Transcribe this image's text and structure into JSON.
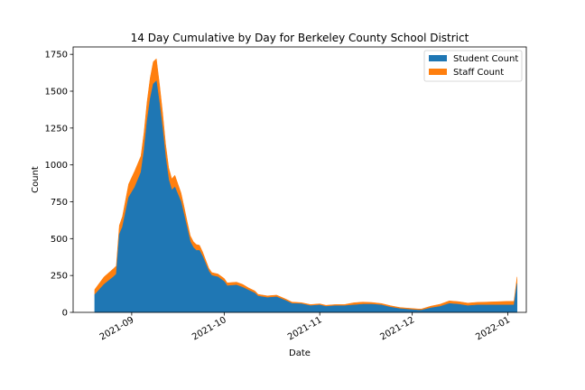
{
  "chart_data": {
    "type": "area",
    "stacked": true,
    "title": "14 Day Cumulative by Day for Berkeley County School District",
    "xlabel": "Date",
    "ylabel": "Count",
    "ylim": [
      0,
      1800
    ],
    "xlim": [
      "2021-08-13",
      "2022-01-07"
    ],
    "yticks": [
      0,
      250,
      500,
      750,
      1000,
      1250,
      1500,
      1750
    ],
    "ytick_labels": [
      "0",
      "250",
      "500",
      "750",
      "1000",
      "1250",
      "1500",
      "1750"
    ],
    "xticks": [
      "2021-09-01",
      "2021-10-01",
      "2021-11-01",
      "2021-12-01",
      "2022-01-01"
    ],
    "xtick_labels": [
      "2021-09",
      "2021-10",
      "2021-11",
      "2021-12",
      "2022-01"
    ],
    "legend_position": "top-right",
    "grid": false,
    "series": [
      {
        "name": "Student Count",
        "color": "#1f77b4",
        "points": [
          [
            "2021-08-20",
            120
          ],
          [
            "2021-08-23",
            190
          ],
          [
            "2021-08-26",
            240
          ],
          [
            "2021-08-27",
            260
          ],
          [
            "2021-08-28",
            530
          ],
          [
            "2021-08-29",
            580
          ],
          [
            "2021-08-31",
            780
          ],
          [
            "2021-09-02",
            850
          ],
          [
            "2021-09-04",
            950
          ],
          [
            "2021-09-05",
            1100
          ],
          [
            "2021-09-06",
            1300
          ],
          [
            "2021-09-07",
            1450
          ],
          [
            "2021-09-08",
            1550
          ],
          [
            "2021-09-09",
            1570
          ],
          [
            "2021-09-10",
            1420
          ],
          [
            "2021-09-11",
            1250
          ],
          [
            "2021-09-12",
            1050
          ],
          [
            "2021-09-13",
            900
          ],
          [
            "2021-09-14",
            830
          ],
          [
            "2021-09-15",
            850
          ],
          [
            "2021-09-16",
            800
          ],
          [
            "2021-09-17",
            750
          ],
          [
            "2021-09-18",
            660
          ],
          [
            "2021-09-19",
            570
          ],
          [
            "2021-09-20",
            480
          ],
          [
            "2021-09-21",
            440
          ],
          [
            "2021-09-22",
            420
          ],
          [
            "2021-09-23",
            420
          ],
          [
            "2021-09-24",
            380
          ],
          [
            "2021-09-25",
            330
          ],
          [
            "2021-09-26",
            280
          ],
          [
            "2021-09-27",
            250
          ],
          [
            "2021-09-29",
            240
          ],
          [
            "2021-10-01",
            210
          ],
          [
            "2021-10-02",
            180
          ],
          [
            "2021-10-05",
            185
          ],
          [
            "2021-10-07",
            170
          ],
          [
            "2021-10-09",
            150
          ],
          [
            "2021-10-11",
            130
          ],
          [
            "2021-10-12",
            110
          ],
          [
            "2021-10-15",
            100
          ],
          [
            "2021-10-18",
            105
          ],
          [
            "2021-10-21",
            80
          ],
          [
            "2021-10-23",
            60
          ],
          [
            "2021-10-26",
            58
          ],
          [
            "2021-10-29",
            45
          ],
          [
            "2021-11-01",
            50
          ],
          [
            "2021-11-03",
            40
          ],
          [
            "2021-11-06",
            45
          ],
          [
            "2021-11-09",
            45
          ],
          [
            "2021-11-12",
            50
          ],
          [
            "2021-11-15",
            55
          ],
          [
            "2021-11-18",
            55
          ],
          [
            "2021-11-21",
            50
          ],
          [
            "2021-11-24",
            35
          ],
          [
            "2021-11-27",
            25
          ],
          [
            "2021-11-30",
            20
          ],
          [
            "2021-12-03",
            15
          ],
          [
            "2021-12-04",
            15
          ],
          [
            "2021-12-07",
            30
          ],
          [
            "2021-12-10",
            40
          ],
          [
            "2021-12-13",
            60
          ],
          [
            "2021-12-16",
            55
          ],
          [
            "2021-12-19",
            45
          ],
          [
            "2021-12-22",
            50
          ],
          [
            "2021-12-25",
            50
          ],
          [
            "2021-12-28",
            50
          ],
          [
            "2022-01-01",
            50
          ],
          [
            "2022-01-03",
            50
          ],
          [
            "2022-01-04",
            195
          ],
          [
            "2022-01-04",
            40
          ]
        ]
      },
      {
        "name": "Staff Count",
        "color": "#ff7f0e",
        "points": [
          [
            "2021-08-20",
            35
          ],
          [
            "2021-08-23",
            50
          ],
          [
            "2021-08-26",
            55
          ],
          [
            "2021-08-27",
            55
          ],
          [
            "2021-08-28",
            60
          ],
          [
            "2021-08-29",
            70
          ],
          [
            "2021-08-31",
            90
          ],
          [
            "2021-09-02",
            110
          ],
          [
            "2021-09-04",
            110
          ],
          [
            "2021-09-05",
            120
          ],
          [
            "2021-09-06",
            130
          ],
          [
            "2021-09-07",
            140
          ],
          [
            "2021-09-08",
            150
          ],
          [
            "2021-09-09",
            150
          ],
          [
            "2021-09-10",
            130
          ],
          [
            "2021-09-11",
            110
          ],
          [
            "2021-09-12",
            90
          ],
          [
            "2021-09-13",
            80
          ],
          [
            "2021-09-14",
            75
          ],
          [
            "2021-09-15",
            80
          ],
          [
            "2021-09-16",
            70
          ],
          [
            "2021-09-17",
            60
          ],
          [
            "2021-09-18",
            55
          ],
          [
            "2021-09-19",
            45
          ],
          [
            "2021-09-20",
            40
          ],
          [
            "2021-09-21",
            40
          ],
          [
            "2021-09-22",
            40
          ],
          [
            "2021-09-23",
            35
          ],
          [
            "2021-09-24",
            30
          ],
          [
            "2021-09-25",
            25
          ],
          [
            "2021-09-26",
            20
          ],
          [
            "2021-09-27",
            20
          ],
          [
            "2021-09-29",
            20
          ],
          [
            "2021-10-01",
            20
          ],
          [
            "2021-10-02",
            20
          ],
          [
            "2021-10-05",
            20
          ],
          [
            "2021-10-07",
            20
          ],
          [
            "2021-10-09",
            15
          ],
          [
            "2021-10-11",
            15
          ],
          [
            "2021-10-12",
            12
          ],
          [
            "2021-10-15",
            12
          ],
          [
            "2021-10-18",
            12
          ],
          [
            "2021-10-21",
            10
          ],
          [
            "2021-10-23",
            10
          ],
          [
            "2021-10-26",
            8
          ],
          [
            "2021-10-29",
            8
          ],
          [
            "2021-11-01",
            8
          ],
          [
            "2021-11-03",
            8
          ],
          [
            "2021-11-06",
            8
          ],
          [
            "2021-11-09",
            8
          ],
          [
            "2021-11-12",
            15
          ],
          [
            "2021-11-15",
            15
          ],
          [
            "2021-11-18",
            12
          ],
          [
            "2021-11-21",
            10
          ],
          [
            "2021-11-24",
            10
          ],
          [
            "2021-11-27",
            8
          ],
          [
            "2021-11-30",
            8
          ],
          [
            "2021-12-03",
            8
          ],
          [
            "2021-12-04",
            8
          ],
          [
            "2021-12-07",
            12
          ],
          [
            "2021-12-10",
            15
          ],
          [
            "2021-12-13",
            18
          ],
          [
            "2021-12-16",
            18
          ],
          [
            "2021-12-19",
            18
          ],
          [
            "2021-12-22",
            18
          ],
          [
            "2021-12-25",
            20
          ],
          [
            "2021-12-28",
            22
          ],
          [
            "2022-01-01",
            25
          ],
          [
            "2022-01-03",
            25
          ],
          [
            "2022-01-04",
            45
          ],
          [
            "2022-01-04",
            15
          ]
        ]
      }
    ]
  }
}
